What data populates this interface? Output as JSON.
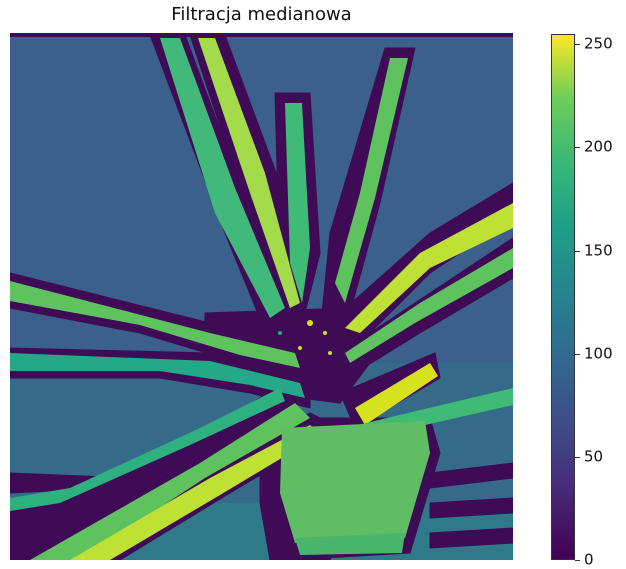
{
  "title": "Filtracja medianowa",
  "colormap": "viridis",
  "colorbar": {
    "min": 0,
    "max": 255,
    "ticks": [
      "0",
      "50",
      "100",
      "150",
      "200",
      "250"
    ],
    "tick_values": [
      0,
      50,
      100,
      150,
      200,
      250
    ]
  },
  "colors": {
    "background_fill": "#3b5f8c",
    "dark_outline": "#3f0b57",
    "leaf_green": "#5ec35f",
    "leaf_teal": "#24a887",
    "leaf_yellow": "#bfe035",
    "pot_green": "#5fbe63"
  }
}
